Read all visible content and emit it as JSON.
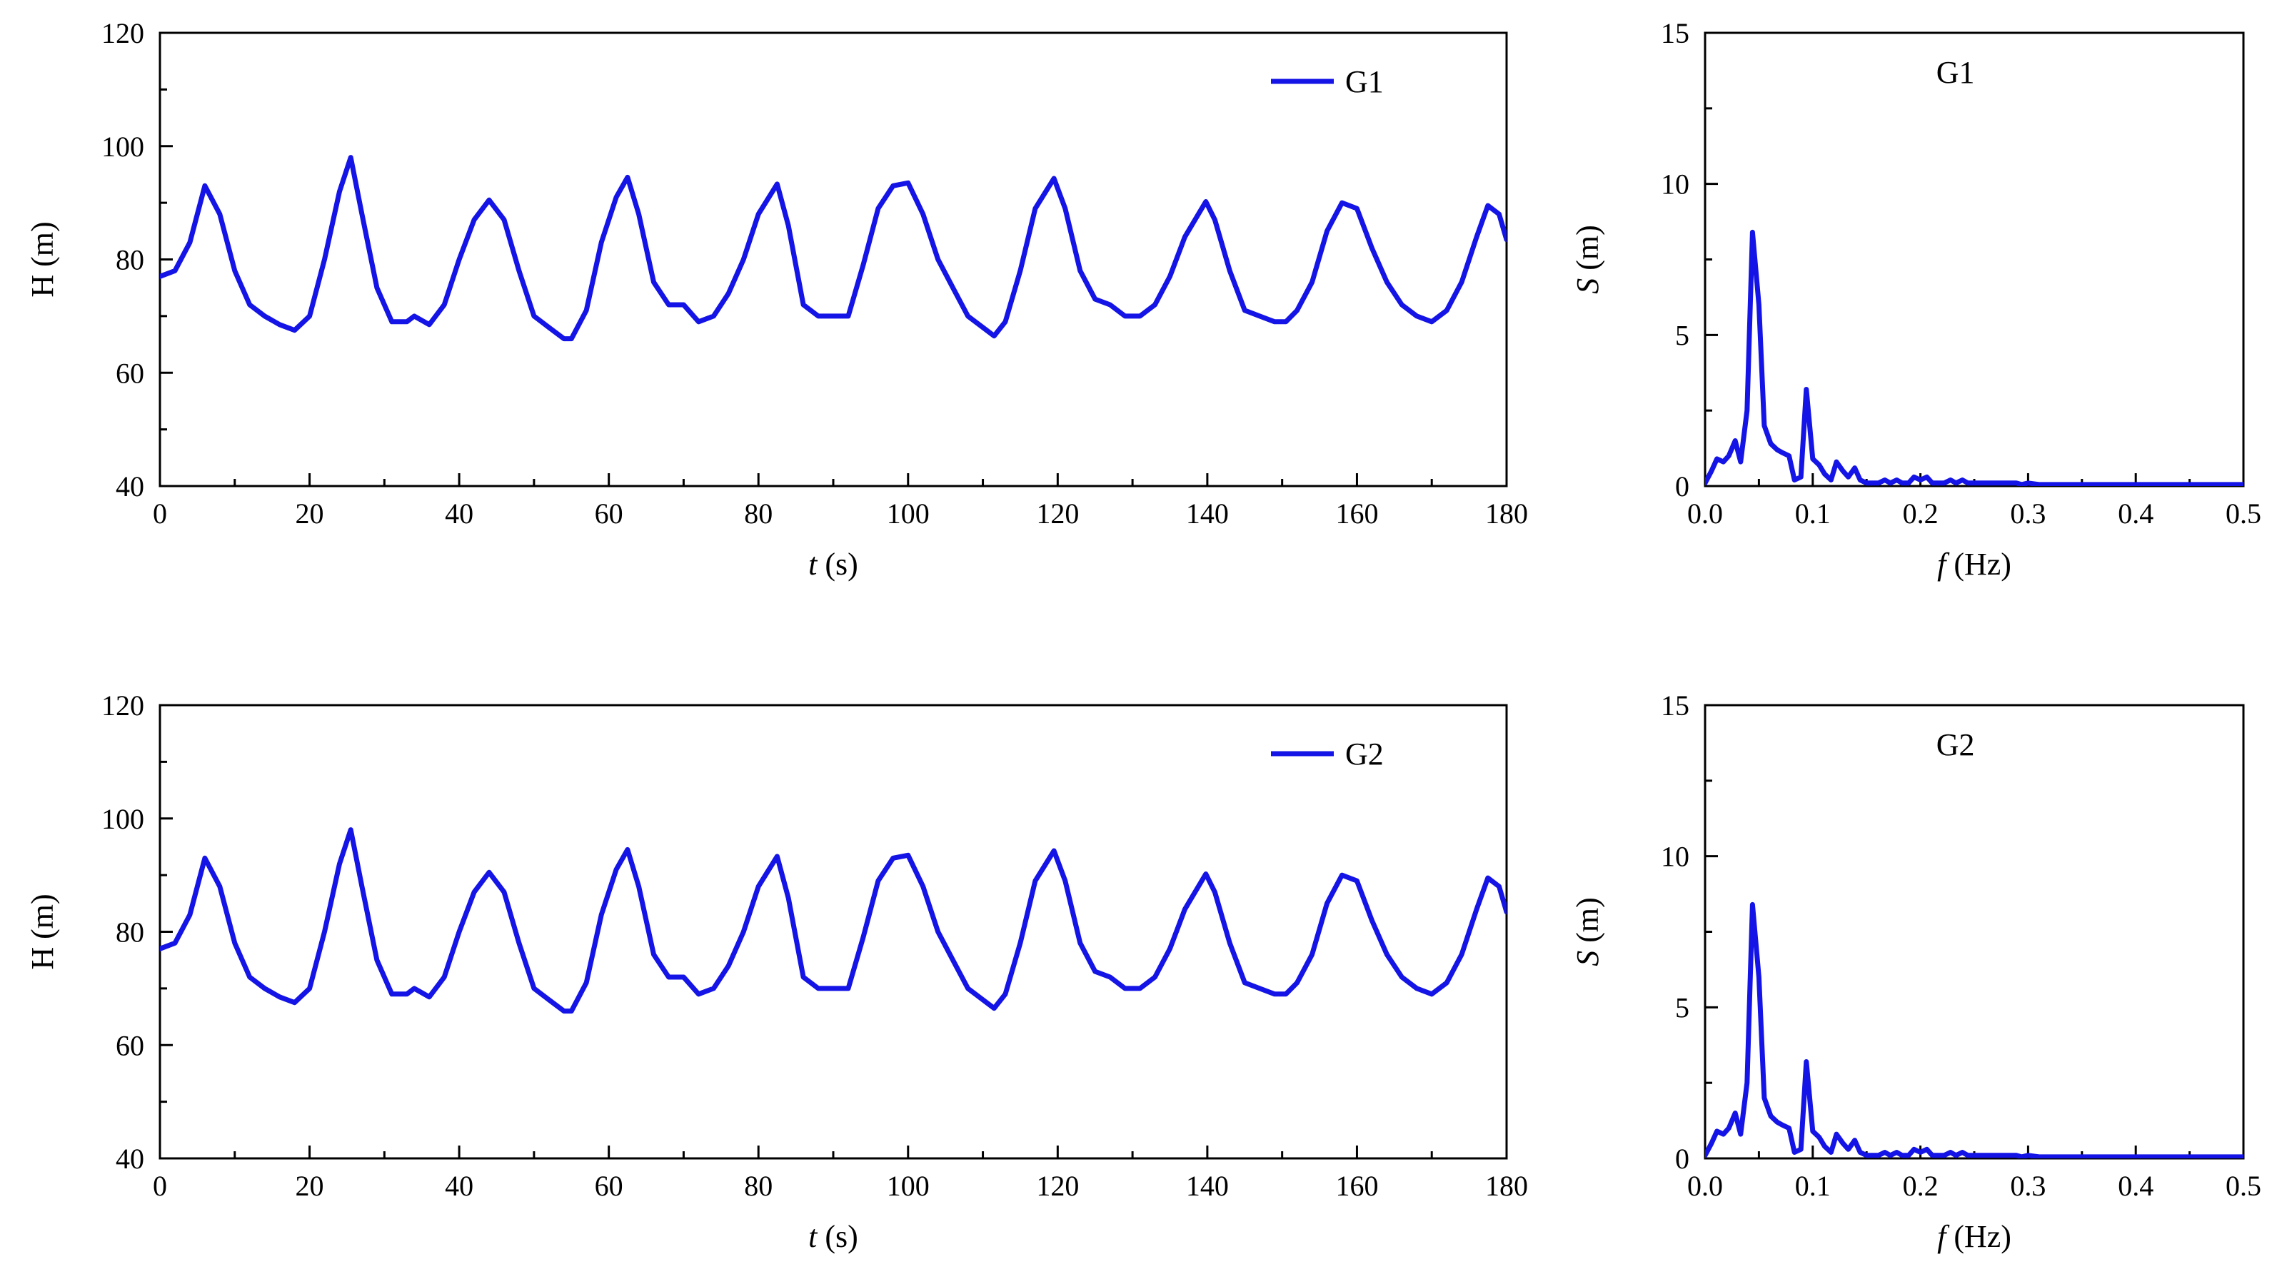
{
  "chart_data": [
    {
      "id": "time-g1",
      "type": "line",
      "xlabel_italic": "t",
      "xlabel_rest": " (s)",
      "ylabel": "H (m)",
      "xlim": [
        0,
        180
      ],
      "ylim": [
        40,
        120
      ],
      "xticks": [
        0,
        20,
        40,
        60,
        80,
        100,
        120,
        140,
        160,
        180
      ],
      "yticks": [
        40,
        60,
        80,
        100,
        120
      ],
      "legend": "top-right",
      "grid": false,
      "series": [
        {
          "name": "G1",
          "x": [
            0,
            2,
            4,
            6,
            8,
            10,
            12,
            14,
            16,
            18,
            20,
            22,
            24,
            25.5,
            27,
            29,
            31,
            33,
            34,
            36,
            38,
            40,
            42,
            44,
            46,
            48,
            50,
            52,
            54,
            55,
            57,
            59,
            61,
            62.5,
            64,
            66,
            68,
            70,
            72,
            74,
            76,
            78,
            80,
            82.5,
            84,
            86,
            88,
            90,
            92,
            94,
            96,
            98,
            100,
            102,
            104,
            106,
            108,
            110,
            111.5,
            113,
            115,
            117,
            119.5,
            121,
            123,
            125,
            127,
            129,
            131,
            133,
            135,
            137,
            139.8,
            141,
            143,
            145,
            147,
            149,
            150.5,
            152,
            154,
            156,
            158,
            160,
            162,
            164,
            166,
            168,
            170,
            172,
            174,
            176,
            177.5,
            179,
            180
          ],
          "y": [
            77,
            78,
            83,
            93,
            88,
            78,
            72,
            70,
            68.5,
            67.5,
            70,
            80,
            92,
            98,
            88,
            75,
            69,
            69,
            70,
            68.5,
            72,
            80,
            87,
            90.5,
            87,
            78,
            70,
            68,
            66,
            66,
            71,
            83,
            91,
            94.5,
            88,
            76,
            72,
            72,
            69,
            70,
            74,
            80,
            88,
            93.3,
            86,
            72,
            70,
            70,
            70,
            79,
            89,
            93,
            93.5,
            88,
            80,
            75,
            70,
            68,
            66.5,
            69,
            78,
            89,
            94.3,
            89,
            78,
            73,
            72,
            70,
            70,
            72,
            77,
            84,
            90.2,
            87,
            78,
            71,
            70,
            69,
            69,
            71,
            76,
            85,
            90,
            89,
            82,
            76,
            72,
            70,
            69,
            71,
            76,
            84,
            89.5,
            88,
            83.5
          ]
        }
      ]
    },
    {
      "id": "spectrum-g1",
      "type": "line",
      "title": "G1",
      "xlabel_italic": "f",
      "xlabel_rest": " (Hz)",
      "ylabel_italic": "S",
      "ylabel_rest": " (m)",
      "xlim": [
        0,
        0.5
      ],
      "ylim": [
        0,
        15
      ],
      "xticks": [
        0.0,
        0.1,
        0.2,
        0.3,
        0.4,
        0.5
      ],
      "xticklabels": [
        "0.0",
        "0.1",
        "0.2",
        "0.3",
        "0.4",
        "0.5"
      ],
      "yticks": [
        0,
        5,
        10,
        15
      ],
      "grid": false,
      "series": [
        {
          "x": [
            0,
            0.006,
            0.011,
            0.017,
            0.022,
            0.028,
            0.033,
            0.039,
            0.044,
            0.05,
            0.055,
            0.061,
            0.067,
            0.072,
            0.078,
            0.083,
            0.089,
            0.094,
            0.1,
            0.106,
            0.111,
            0.117,
            0.122,
            0.128,
            0.133,
            0.139,
            0.144,
            0.15,
            0.156,
            0.161,
            0.167,
            0.172,
            0.178,
            0.183,
            0.189,
            0.194,
            0.2,
            0.206,
            0.211,
            0.217,
            0.222,
            0.228,
            0.233,
            0.239,
            0.244,
            0.25,
            0.256,
            0.261,
            0.267,
            0.272,
            0.278,
            0.283,
            0.289,
            0.294,
            0.3,
            0.31,
            0.32,
            0.33,
            0.35,
            0.38,
            0.4,
            0.45,
            0.5
          ],
          "y": [
            0.1,
            0.5,
            0.9,
            0.8,
            1,
            1.5,
            0.8,
            2.5,
            8.4,
            6,
            2,
            1.4,
            1.2,
            1.1,
            1,
            0.2,
            0.3,
            3.2,
            0.9,
            0.7,
            0.4,
            0.2,
            0.8,
            0.5,
            0.3,
            0.6,
            0.2,
            0.1,
            0.1,
            0.1,
            0.2,
            0.1,
            0.2,
            0.1,
            0.1,
            0.3,
            0.2,
            0.3,
            0.1,
            0.1,
            0.1,
            0.2,
            0.1,
            0.2,
            0.1,
            0.1,
            0.1,
            0.1,
            0.1,
            0.1,
            0.1,
            0.1,
            0.1,
            0.05,
            0.1,
            0.05,
            0.05,
            0.05,
            0.05,
            0.05,
            0.05,
            0.05,
            0.05
          ]
        }
      ]
    },
    {
      "id": "time-g2",
      "type": "line",
      "xlabel_italic": "t",
      "xlabel_rest": " (s)",
      "ylabel": "H (m)",
      "xlim": [
        0,
        180
      ],
      "ylim": [
        40,
        120
      ],
      "xticks": [
        0,
        20,
        40,
        60,
        80,
        100,
        120,
        140,
        160,
        180
      ],
      "yticks": [
        40,
        60,
        80,
        100,
        120
      ],
      "legend": "top-right",
      "grid": false,
      "series": [
        {
          "name": "G2",
          "x": [
            0,
            2,
            4,
            6,
            8,
            10,
            12,
            14,
            16,
            18,
            20,
            22,
            24,
            25.5,
            27,
            29,
            31,
            33,
            34,
            36,
            38,
            40,
            42,
            44,
            46,
            48,
            50,
            52,
            54,
            55,
            57,
            59,
            61,
            62.5,
            64,
            66,
            68,
            70,
            72,
            74,
            76,
            78,
            80,
            82.5,
            84,
            86,
            88,
            90,
            92,
            94,
            96,
            98,
            100,
            102,
            104,
            106,
            108,
            110,
            111.5,
            113,
            115,
            117,
            119.5,
            121,
            123,
            125,
            127,
            129,
            131,
            133,
            135,
            137,
            139.8,
            141,
            143,
            145,
            147,
            149,
            150.5,
            152,
            154,
            156,
            158,
            160,
            162,
            164,
            166,
            168,
            170,
            172,
            174,
            176,
            177.5,
            179,
            180
          ],
          "y": [
            77,
            78,
            83,
            93,
            88,
            78,
            72,
            70,
            68.5,
            67.5,
            70,
            80,
            92,
            98,
            88,
            75,
            69,
            69,
            70,
            68.5,
            72,
            80,
            87,
            90.5,
            87,
            78,
            70,
            68,
            66,
            66,
            71,
            83,
            91,
            94.5,
            88,
            76,
            72,
            72,
            69,
            70,
            74,
            80,
            88,
            93.3,
            86,
            72,
            70,
            70,
            70,
            79,
            89,
            93,
            93.5,
            88,
            80,
            75,
            70,
            68,
            66.5,
            69,
            78,
            89,
            94.3,
            89,
            78,
            73,
            72,
            70,
            70,
            72,
            77,
            84,
            90.2,
            87,
            78,
            71,
            70,
            69,
            69,
            71,
            76,
            85,
            90,
            89,
            82,
            76,
            72,
            70,
            69,
            71,
            76,
            84,
            89.5,
            88,
            83.5
          ]
        }
      ]
    },
    {
      "id": "spectrum-g2",
      "type": "line",
      "title": "G2",
      "xlabel_italic": "f",
      "xlabel_rest": " (Hz)",
      "ylabel_italic": "S",
      "ylabel_rest": " (m)",
      "xlim": [
        0,
        0.5
      ],
      "ylim": [
        0,
        15
      ],
      "xticks": [
        0.0,
        0.1,
        0.2,
        0.3,
        0.4,
        0.5
      ],
      "xticklabels": [
        "0.0",
        "0.1",
        "0.2",
        "0.3",
        "0.4",
        "0.5"
      ],
      "yticks": [
        0,
        5,
        10,
        15
      ],
      "grid": false,
      "series": [
        {
          "x": [
            0,
            0.006,
            0.011,
            0.017,
            0.022,
            0.028,
            0.033,
            0.039,
            0.044,
            0.05,
            0.055,
            0.061,
            0.067,
            0.072,
            0.078,
            0.083,
            0.089,
            0.094,
            0.1,
            0.106,
            0.111,
            0.117,
            0.122,
            0.128,
            0.133,
            0.139,
            0.144,
            0.15,
            0.156,
            0.161,
            0.167,
            0.172,
            0.178,
            0.183,
            0.189,
            0.194,
            0.2,
            0.206,
            0.211,
            0.217,
            0.222,
            0.228,
            0.233,
            0.239,
            0.244,
            0.25,
            0.256,
            0.261,
            0.267,
            0.272,
            0.278,
            0.283,
            0.289,
            0.294,
            0.3,
            0.31,
            0.32,
            0.33,
            0.35,
            0.38,
            0.4,
            0.45,
            0.5
          ],
          "y": [
            0.1,
            0.5,
            0.9,
            0.8,
            1,
            1.5,
            0.8,
            2.5,
            8.4,
            6,
            2,
            1.4,
            1.2,
            1.1,
            1,
            0.2,
            0.3,
            3.2,
            0.9,
            0.7,
            0.4,
            0.2,
            0.8,
            0.5,
            0.3,
            0.6,
            0.2,
            0.1,
            0.1,
            0.1,
            0.2,
            0.1,
            0.2,
            0.1,
            0.1,
            0.3,
            0.2,
            0.3,
            0.1,
            0.1,
            0.1,
            0.2,
            0.1,
            0.2,
            0.1,
            0.1,
            0.1,
            0.1,
            0.1,
            0.1,
            0.1,
            0.1,
            0.1,
            0.05,
            0.1,
            0.05,
            0.05,
            0.05,
            0.05,
            0.05,
            0.05,
            0.05,
            0.05
          ]
        }
      ]
    }
  ],
  "colors": {
    "series": "#1414e6",
    "axis": "#000000"
  }
}
